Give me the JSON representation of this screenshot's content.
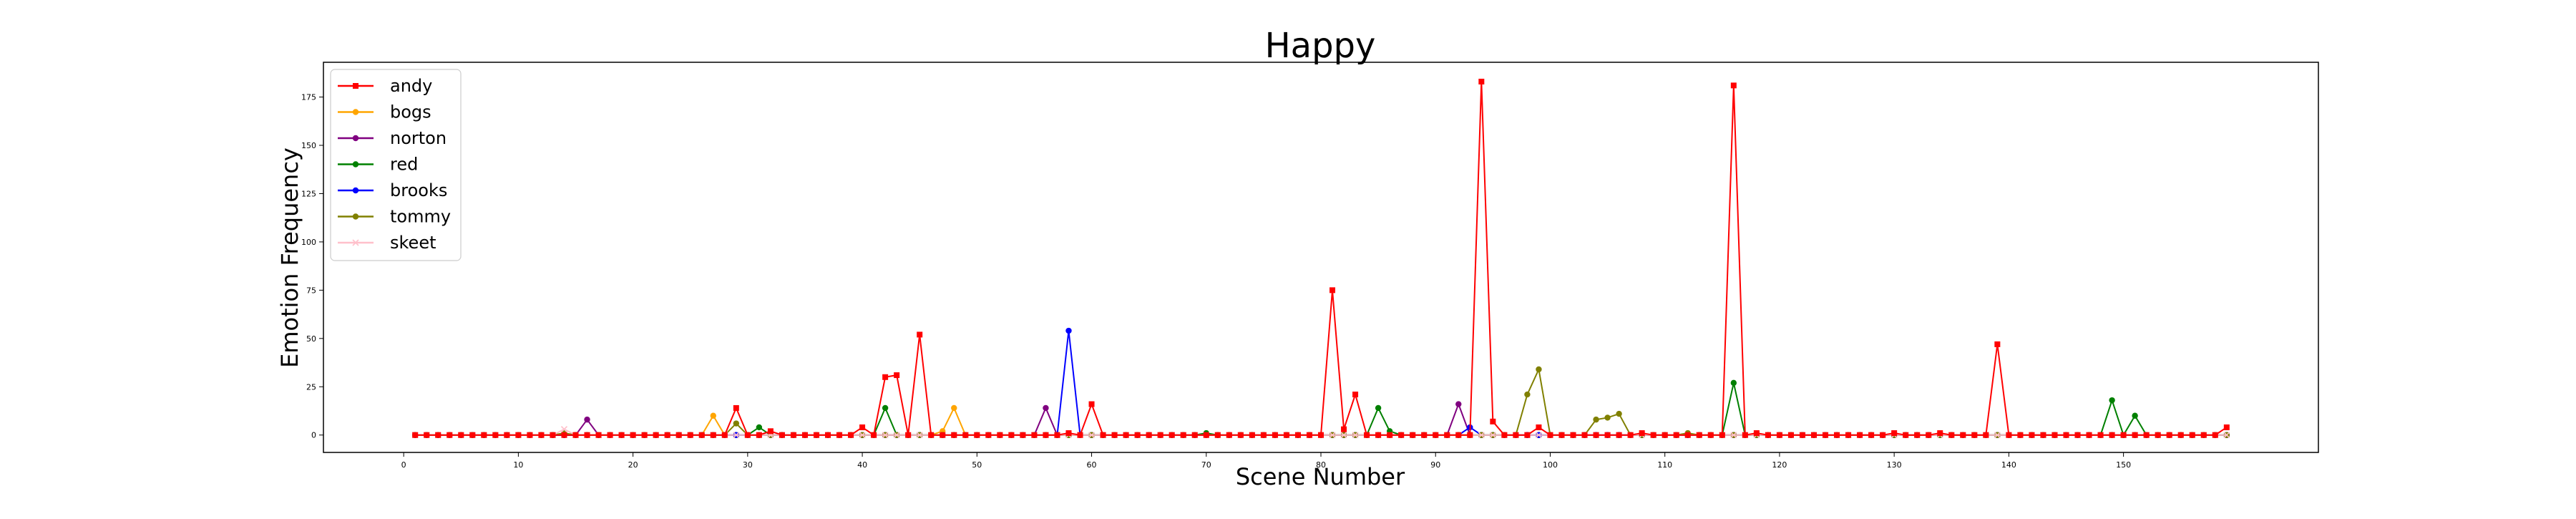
{
  "chart_data": {
    "type": "line",
    "title": "Happy",
    "xlabel": "Scene Number",
    "ylabel": "Emotion Frequency",
    "xlim": [
      -7,
      167
    ],
    "ylim": [
      -9,
      193
    ],
    "xticks": [
      0,
      10,
      20,
      30,
      40,
      50,
      60,
      70,
      80,
      90,
      100,
      110,
      120,
      130,
      140,
      150
    ],
    "yticks": [
      0,
      25,
      50,
      75,
      100,
      125,
      150,
      175
    ],
    "grid": false,
    "legend_position": "upper-left",
    "x_start": 1,
    "x_end": 159,
    "series": [
      {
        "name": "andy",
        "color": "#ff0000",
        "marker": "s",
        "draw_order": 7,
        "nonzero": {
          "29": 14,
          "32": 2,
          "40": 4,
          "42": 30,
          "43": 31,
          "45": 52,
          "58": 1,
          "60": 16,
          "81": 75,
          "82": 3,
          "83": 21,
          "94": 183,
          "95": 7,
          "99": 4,
          "108": 1,
          "116": 181,
          "118": 1,
          "130": 1,
          "134": 1,
          "139": 47,
          "159": 4
        }
      },
      {
        "name": "bogs",
        "color": "#ffa500",
        "marker": "o",
        "draw_order": 1,
        "nonzero": {
          "27": 10,
          "47": 2,
          "48": 14
        }
      },
      {
        "name": "norton",
        "color": "#800080",
        "marker": "o",
        "draw_order": 2,
        "nonzero": {
          "16": 8,
          "56": 14,
          "92": 16
        }
      },
      {
        "name": "red",
        "color": "#008000",
        "marker": "o",
        "draw_order": 3,
        "nonzero": {
          "31": 4,
          "42": 14,
          "70": 1,
          "85": 14,
          "86": 2,
          "116": 27,
          "149": 18,
          "151": 10
        }
      },
      {
        "name": "brooks",
        "color": "#0000ff",
        "marker": "o",
        "draw_order": 4,
        "nonzero": {
          "58": 54,
          "93": 4
        }
      },
      {
        "name": "tommy",
        "color": "#808000",
        "marker": "o",
        "draw_order": 5,
        "nonzero": {
          "14": 1,
          "29": 6,
          "98": 21,
          "99": 34,
          "104": 8,
          "105": 9,
          "106": 11,
          "112": 1
        }
      },
      {
        "name": "skeet",
        "color": "#ffc0cb",
        "marker": "x",
        "draw_order": 6,
        "nonzero": {
          "14": 3
        }
      }
    ]
  }
}
